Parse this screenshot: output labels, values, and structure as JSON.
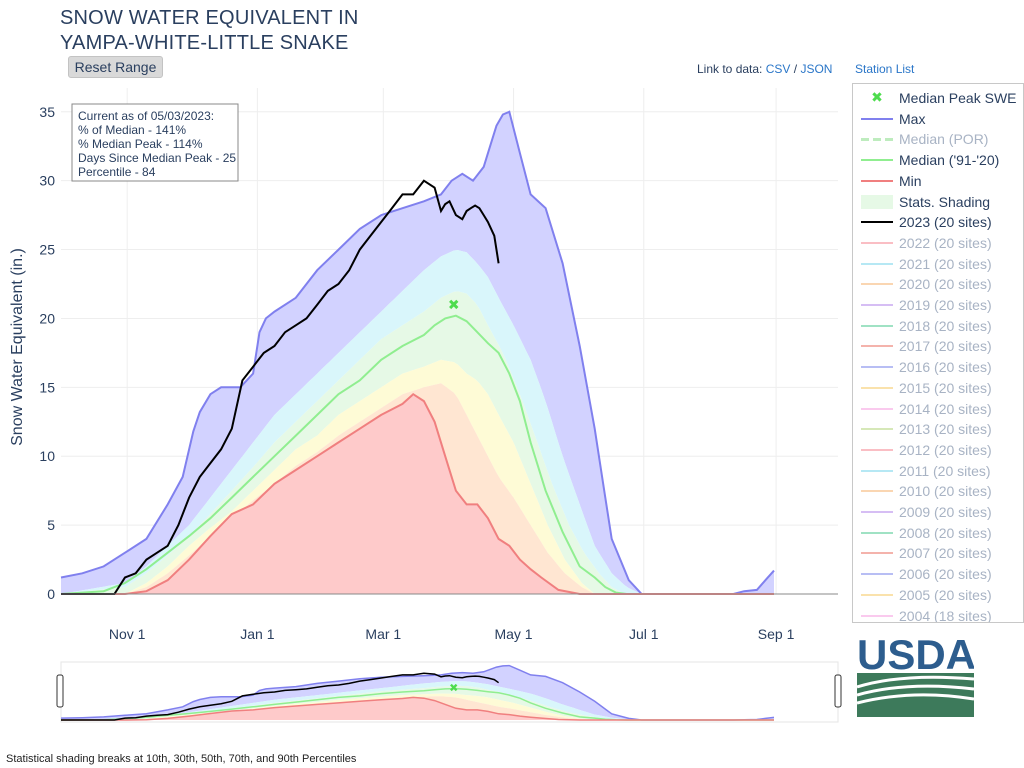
{
  "header": {
    "title_line1": "SNOW WATER EQUIVALENT IN",
    "title_line2": "YAMPA-WHITE-LITTLE SNAKE",
    "reset_label": "Reset Range",
    "link_prefix": "Link to data:",
    "csv_label": "CSV",
    "slash": "/",
    "json_label": "JSON",
    "station_list_label": "Station List"
  },
  "info_box": {
    "line1": "Current as of 05/03/2023:",
    "line2": "% of Median - 141%",
    "line3": "% Median Peak - 114%",
    "line4": "Days Since Median Peak - 25",
    "line5": "Percentile - 84"
  },
  "footer": {
    "note": "Statistical shading breaks at 10th, 30th, 50th, 70th, and 90th Percentiles"
  },
  "logo": {
    "text": "USDA"
  },
  "legend": [
    {
      "label": "Median Peak SWE",
      "color": "#4ddc4d",
      "kind": "marker",
      "faded": false
    },
    {
      "label": "Max",
      "color": "#8080ee",
      "kind": "line",
      "faded": false
    },
    {
      "label": "Median (POR)",
      "color": "#a8e6a8",
      "kind": "dash",
      "faded": true
    },
    {
      "label": "Median ('91-'20)",
      "color": "#90ee90",
      "kind": "line",
      "faded": false
    },
    {
      "label": "Min",
      "color": "#f07f7f",
      "kind": "line",
      "faded": false
    },
    {
      "label": "Stats. Shading",
      "color": "#e6f9e6",
      "kind": "block",
      "faded": false
    },
    {
      "label": "2023 (20 sites)",
      "color": "#000000",
      "kind": "line",
      "faded": false
    },
    {
      "label": "2022 (20 sites)",
      "color": "#f8a8b0",
      "kind": "line",
      "faded": true
    },
    {
      "label": "2021 (20 sites)",
      "color": "#9ee0f0",
      "kind": "line",
      "faded": true
    },
    {
      "label": "2020 (20 sites)",
      "color": "#f8c898",
      "kind": "line",
      "faded": true
    },
    {
      "label": "2019 (20 sites)",
      "color": "#c8a8f0",
      "kind": "line",
      "faded": true
    },
    {
      "label": "2018 (20 sites)",
      "color": "#80d8b0",
      "kind": "line",
      "faded": true
    },
    {
      "label": "2017 (20 sites)",
      "color": "#f09a90",
      "kind": "line",
      "faded": true
    },
    {
      "label": "2016 (20 sites)",
      "color": "#a0a8f0",
      "kind": "line",
      "faded": true
    },
    {
      "label": "2015 (20 sites)",
      "color": "#f8d890",
      "kind": "line",
      "faded": true
    },
    {
      "label": "2014 (20 sites)",
      "color": "#f8b8e8",
      "kind": "line",
      "faded": true
    },
    {
      "label": "2013 (20 sites)",
      "color": "#c8e0a0",
      "kind": "line",
      "faded": true
    },
    {
      "label": "2012 (20 sites)",
      "color": "#f8a8b0",
      "kind": "line",
      "faded": true
    },
    {
      "label": "2011 (20 sites)",
      "color": "#9ee0f0",
      "kind": "line",
      "faded": true
    },
    {
      "label": "2010 (20 sites)",
      "color": "#f8c898",
      "kind": "line",
      "faded": true
    },
    {
      "label": "2009 (20 sites)",
      "color": "#c8a8f0",
      "kind": "line",
      "faded": true
    },
    {
      "label": "2008 (20 sites)",
      "color": "#80d8b0",
      "kind": "line",
      "faded": true
    },
    {
      "label": "2007 (20 sites)",
      "color": "#f09a90",
      "kind": "line",
      "faded": true
    },
    {
      "label": "2006 (20 sites)",
      "color": "#a0a8f0",
      "kind": "line",
      "faded": true
    },
    {
      "label": "2005 (20 sites)",
      "color": "#f8d890",
      "kind": "line",
      "faded": true
    },
    {
      "label": "2004 (18 sites)",
      "color": "#f8b8e8",
      "kind": "line",
      "faded": true
    }
  ],
  "chart_data": {
    "type": "area",
    "title": "SNOW WATER EQUIVALENT IN YAMPA-WHITE-LITTLE SNAKE",
    "ylabel": "Snow Water Equivalent (in.)",
    "xlabel": "",
    "ylim": [
      0,
      36
    ],
    "xlim": [
      "Oct 1",
      "Sep 30"
    ],
    "x_tick_labels": [
      "Nov 1",
      "Jan 1",
      "Mar 1",
      "May 1",
      "Jul 1",
      "Sep 1"
    ],
    "x_tick_days": [
      31,
      92,
      151,
      212,
      273,
      335
    ],
    "y_ticks": [
      0,
      5,
      10,
      15,
      20,
      25,
      30,
      35
    ],
    "grid": true,
    "legend_position": "right",
    "x_units": "days since Oct 1",
    "series": [
      {
        "name": "Max",
        "color": "#8080ee",
        "x": [
          0,
          10,
          20,
          30,
          40,
          50,
          57,
          62,
          65,
          70,
          75,
          80,
          84,
          90,
          93,
          96,
          100,
          110,
          120,
          130,
          140,
          150,
          160,
          170,
          178,
          183,
          188,
          193,
          198,
          201,
          204,
          207,
          210,
          215,
          220,
          227,
          235,
          243,
          250,
          255,
          258,
          262,
          266,
          272,
          280,
          300,
          315,
          320,
          326,
          330,
          334
        ],
        "y": [
          1.2,
          1.5,
          2.0,
          3.0,
          4.0,
          6.5,
          8.5,
          11.8,
          13.2,
          14.5,
          15.0,
          15.0,
          15.0,
          16.0,
          19.0,
          20.0,
          20.5,
          21.5,
          23.5,
          25.0,
          26.5,
          27.5,
          28.0,
          28.5,
          29.0,
          30.0,
          30.5,
          30.0,
          31.0,
          32.5,
          34.0,
          34.8,
          35.0,
          32.0,
          29.0,
          28.0,
          24.0,
          18.0,
          12.0,
          7.0,
          4.0,
          2.5,
          1.0,
          0.0,
          0.0,
          0.0,
          0.0,
          0.2,
          0.3,
          1.0,
          1.7
        ]
      },
      {
        "name": "Median ('91-'20)",
        "color": "#90ee90",
        "x": [
          0,
          20,
          30,
          40,
          50,
          60,
          70,
          80,
          90,
          100,
          110,
          120,
          130,
          140,
          150,
          160,
          170,
          175,
          180,
          185,
          190,
          195,
          200,
          205,
          210,
          215,
          220,
          227,
          235,
          243,
          250,
          255,
          260,
          265,
          272,
          334
        ],
        "y": [
          0.0,
          0.2,
          0.8,
          1.8,
          3.0,
          4.2,
          5.5,
          7.0,
          8.5,
          10.0,
          11.5,
          13.0,
          14.5,
          15.5,
          17.0,
          18.0,
          18.8,
          19.5,
          20.0,
          20.2,
          19.8,
          19.0,
          18.2,
          17.5,
          16.0,
          14.0,
          11.0,
          7.5,
          4.5,
          2.0,
          1.2,
          0.5,
          0.1,
          0.0,
          0.0,
          0.0
        ]
      },
      {
        "name": "Min",
        "color": "#f07f7f",
        "x": [
          0,
          30,
          40,
          50,
          60,
          70,
          80,
          90,
          100,
          110,
          120,
          130,
          140,
          150,
          160,
          165,
          170,
          175,
          180,
          185,
          190,
          195,
          200,
          205,
          210,
          215,
          220,
          225,
          233,
          243,
          250,
          334
        ],
        "y": [
          0.0,
          0.0,
          0.2,
          1.0,
          2.5,
          4.2,
          5.8,
          6.5,
          8.0,
          9.0,
          10.0,
          11.0,
          12.0,
          13.0,
          13.8,
          14.5,
          14.0,
          12.5,
          10.0,
          7.5,
          6.5,
          6.5,
          5.5,
          4.0,
          3.5,
          2.5,
          1.8,
          1.2,
          0.3,
          0.0,
          0.0,
          0.0
        ]
      },
      {
        "name": "2023 (20 sites)",
        "color": "#000000",
        "x": [
          0,
          10,
          20,
          25,
          30,
          35,
          40,
          45,
          50,
          55,
          60,
          65,
          70,
          75,
          80,
          85,
          90,
          95,
          100,
          105,
          110,
          115,
          120,
          125,
          130,
          135,
          140,
          145,
          150,
          155,
          160,
          165,
          170,
          175,
          178,
          180,
          182,
          185,
          188,
          190,
          192,
          194,
          196,
          198,
          200,
          203,
          205
        ],
        "y": [
          0.0,
          0.0,
          0.0,
          0.0,
          1.2,
          1.5,
          2.5,
          3.0,
          3.5,
          5.0,
          7.0,
          8.5,
          9.5,
          10.5,
          12.0,
          15.5,
          16.5,
          17.5,
          18.0,
          19.0,
          19.5,
          20.0,
          21.0,
          22.0,
          22.5,
          23.5,
          25.0,
          26.0,
          27.0,
          28.0,
          29.0,
          29.0,
          30.0,
          29.5,
          27.8,
          28.3,
          28.5,
          27.5,
          27.2,
          27.8,
          28.0,
          28.2,
          28.0,
          27.5,
          27.0,
          26.0,
          24.0
        ]
      }
    ],
    "bands": [
      {
        "name": "90th percentile",
        "color": "#e0faff"
      },
      {
        "name": "70th percentile",
        "color": "#e6f9e6"
      },
      {
        "name": "30th percentile",
        "color": "#fefde0"
      },
      {
        "name": "10th percentile",
        "color": "#fff0dc"
      }
    ],
    "percentile_series": [
      {
        "name": "p90",
        "x": [
          0,
          30,
          40,
          50,
          60,
          70,
          80,
          90,
          100,
          110,
          120,
          130,
          140,
          150,
          160,
          170,
          178,
          185,
          190,
          195,
          200,
          205,
          212,
          220,
          227,
          235,
          243,
          250,
          258,
          265,
          272,
          334
        ],
        "y": [
          0.0,
          0.8,
          2.0,
          3.5,
          5.0,
          7.0,
          9.0,
          11.0,
          13.0,
          14.5,
          16.0,
          17.5,
          19.0,
          20.5,
          22.0,
          23.5,
          24.5,
          25.0,
          24.8,
          24.0,
          23.0,
          21.5,
          19.5,
          17.0,
          14.0,
          10.0,
          6.5,
          3.5,
          1.5,
          0.5,
          0.0,
          0.0
        ]
      },
      {
        "name": "p70",
        "x": [
          0,
          30,
          40,
          50,
          60,
          70,
          80,
          90,
          100,
          110,
          120,
          130,
          140,
          150,
          160,
          170,
          178,
          185,
          190,
          195,
          200,
          207,
          215,
          222,
          230,
          238,
          245,
          252,
          258,
          264,
          334
        ],
        "y": [
          0.0,
          0.5,
          1.5,
          2.8,
          4.2,
          5.8,
          7.5,
          9.2,
          11.0,
          12.5,
          14.0,
          15.5,
          17.0,
          18.5,
          19.5,
          20.5,
          21.5,
          22.0,
          21.8,
          21.0,
          19.5,
          17.5,
          14.5,
          11.5,
          8.0,
          5.0,
          3.0,
          1.5,
          0.5,
          0.0,
          0.0
        ]
      },
      {
        "name": "p30",
        "x": [
          0,
          30,
          40,
          50,
          60,
          70,
          80,
          90,
          100,
          110,
          120,
          130,
          140,
          150,
          160,
          170,
          178,
          185,
          190,
          195,
          200,
          205,
          212,
          220,
          228,
          236,
          244,
          250,
          334
        ],
        "y": [
          0.0,
          0.0,
          0.8,
          2.0,
          3.5,
          4.8,
          6.0,
          7.5,
          9.0,
          10.5,
          11.5,
          13.0,
          14.0,
          15.0,
          16.0,
          16.5,
          17.0,
          16.8,
          16.0,
          15.5,
          14.5,
          13.0,
          11.0,
          8.0,
          5.0,
          2.5,
          0.8,
          0.0,
          0.0
        ]
      },
      {
        "name": "p10",
        "x": [
          0,
          30,
          40,
          50,
          60,
          70,
          80,
          90,
          100,
          110,
          120,
          130,
          140,
          150,
          160,
          170,
          178,
          185,
          190,
          195,
          200,
          205,
          212,
          220,
          228,
          236,
          244,
          250,
          334
        ],
        "y": [
          0.0,
          0.0,
          0.5,
          1.5,
          2.8,
          4.2,
          5.5,
          6.8,
          8.0,
          9.3,
          10.3,
          11.5,
          12.5,
          13.5,
          14.5,
          15.0,
          15.3,
          14.5,
          13.0,
          11.5,
          10.0,
          8.5,
          7.0,
          5.0,
          3.0,
          1.5,
          0.5,
          0.0,
          0.0
        ]
      }
    ],
    "markers": [
      {
        "name": "Median Peak SWE",
        "x": 184,
        "y": 21.0,
        "color": "#4ddc4d",
        "symbol": "x"
      }
    ]
  }
}
